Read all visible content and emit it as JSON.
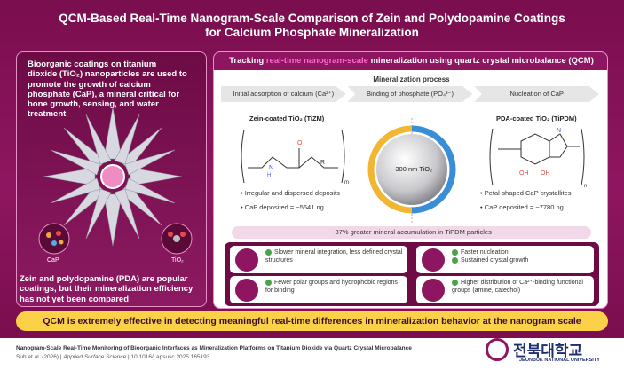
{
  "title_line1": "QCM-Based Real-Time Nanogram-Scale Comparison of Zein and Polydopamine Coatings",
  "title_line2": "for Calcium Phosphate Mineralization",
  "left": {
    "top_text": "Bioorganic coatings on titanium dioxide (TiO₂) nanoparticles are used to promote the growth of calcium phosphate (CaP), a mineral critical for bone growth, sensing, and water treatment",
    "cap_label": "CaP",
    "tio2_label": "TiO₂",
    "bottom_text": "Zein and polydopamine (PDA) are popular coatings, but their mineralization efficiency has not yet been compared"
  },
  "right": {
    "track_prefix": "Tracking ",
    "track_highlight": "real-time nanogram-scale",
    "track_suffix": " mineralization using quartz crystal microbalance (QCM)",
    "process_title": "Mineralization process",
    "stages": [
      "Initial adsorption of calcium (Ca²⁺)",
      "Binding of phosphate (PO₄³⁻)",
      "Nucleation of CaP"
    ],
    "zein_label": "Zein-coated TiO₂ (TiZM)",
    "pda_label": "PDA-coated TiO₂ (TiPDM)",
    "sphere_label": "~300 nm TiO₂",
    "zein_bullet1": "Irregular and dispersed deposits",
    "zein_bullet2": "CaP deposited = ~5641 ng",
    "pda_bullet1": "Petal-shaped CaP crystallites",
    "pda_bullet2": "CaP deposited = ~7780 ng",
    "accum": "~37% greater mineral accumulation in TiPDM particles",
    "card1": "Slower mineral integration, less defined crystal structures",
    "card2a": "Faster nucleation",
    "card2b": "Sustained crystal growth",
    "card3": "Fewer polar groups and hydrophobic regions for binding",
    "card4": "Higher distribution of Ca²⁺-binding functional groups (amine, catechol)"
  },
  "banner": "QCM is extremely effective in detecting meaningful real-time differences in mineralization behavior at the nanogram scale",
  "footer": {
    "citation_title": "Nanogram-Scale Real-Time Monitoring of Bioorganic Interfaces as Mineralization Platforms on Titanium Dioxide via Quartz Crystal Microbalance",
    "authors": "Suh et al. (2026) | ",
    "journal": "Applied Surface Science",
    "doi": " | 10.1016/j.apsusc.2025.165193",
    "university_kr": "전북대학교",
    "university_en": "JEONBUK NATIONAL UNIVERSITY"
  },
  "colors": {
    "primary": "#8e1660",
    "accent": "#fbd148",
    "highlight": "#ff6ad0"
  }
}
